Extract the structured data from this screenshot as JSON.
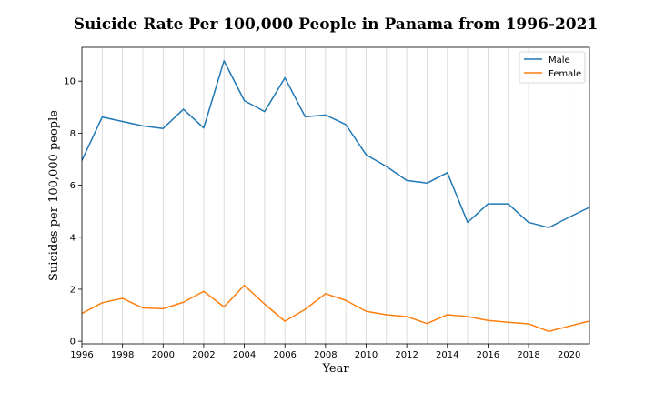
{
  "chart_data": {
    "type": "line",
    "title": "Suicide Rate Per 100,000 People in Panama from 1996-2021",
    "xlabel": "Year",
    "ylabel": "Suicides per 100,000 people",
    "x": [
      1996,
      1997,
      1998,
      1999,
      2000,
      2001,
      2002,
      2003,
      2004,
      2005,
      2006,
      2007,
      2008,
      2009,
      2010,
      2011,
      2012,
      2013,
      2014,
      2015,
      2016,
      2017,
      2018,
      2019,
      2020,
      2021
    ],
    "xlim": [
      1996,
      2021
    ],
    "ylim": [
      -0.1,
      11.3
    ],
    "xticks": [
      "1996",
      "1998",
      "2000",
      "2002",
      "2004",
      "2006",
      "2008",
      "2010",
      "2012",
      "2014",
      "2016",
      "2018",
      "2020"
    ],
    "yticks": [
      "0",
      "2",
      "4",
      "6",
      "8",
      "10"
    ],
    "grid": "vertical",
    "legend_position": "top-right",
    "series": [
      {
        "name": "Male",
        "color": "#1f77b4",
        "values": [
          6.95,
          8.62,
          8.45,
          8.28,
          8.18,
          8.92,
          8.2,
          10.78,
          9.25,
          8.83,
          10.13,
          8.63,
          8.7,
          8.33,
          7.17,
          6.72,
          6.18,
          6.08,
          6.48,
          4.57,
          5.28,
          5.28,
          4.57,
          4.37,
          4.77,
          5.15
        ]
      },
      {
        "name": "Female",
        "color": "#ff7f0e",
        "values": [
          1.07,
          1.48,
          1.65,
          1.28,
          1.25,
          1.5,
          1.92,
          1.32,
          2.15,
          1.43,
          0.77,
          1.23,
          1.83,
          1.57,
          1.15,
          1.02,
          0.95,
          0.68,
          1.02,
          0.95,
          0.8,
          0.73,
          0.67,
          0.38,
          0.58,
          0.78
        ]
      }
    ]
  }
}
